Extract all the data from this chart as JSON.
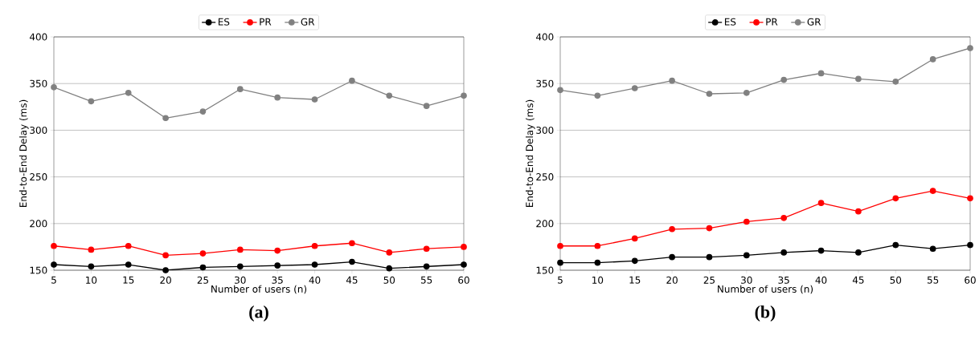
{
  "chart_data": [
    {
      "type": "line",
      "title": "(a)",
      "xlabel": "Number of users (n)",
      "ylabel": "End-to-End Delay (ms)",
      "x": [
        5,
        10,
        15,
        20,
        25,
        30,
        35,
        40,
        45,
        50,
        55,
        60
      ],
      "xlim": [
        5,
        60
      ],
      "xticks": [
        5,
        10,
        15,
        20,
        25,
        30,
        35,
        40,
        45,
        50,
        55,
        60
      ],
      "ylim": [
        150,
        400
      ],
      "yticks": [
        150,
        200,
        250,
        300,
        350,
        400
      ],
      "grid": "y",
      "legend": "top",
      "marker": "circle",
      "line_style": "solid",
      "series": [
        {
          "name": "ES",
          "color": "#000000",
          "values": [
            156,
            154,
            156,
            150,
            153,
            154,
            155,
            156,
            159,
            152,
            154,
            156
          ]
        },
        {
          "name": "PR",
          "color": "#ff0000",
          "values": [
            176,
            172,
            176,
            166,
            168,
            172,
            171,
            176,
            179,
            169,
            173,
            175
          ]
        },
        {
          "name": "GR",
          "color": "#808080",
          "values": [
            346,
            331,
            340,
            313,
            320,
            344,
            335,
            333,
            353,
            337,
            326,
            337
          ]
        }
      ]
    },
    {
      "type": "line",
      "title": "(b)",
      "xlabel": "Number of users (n)",
      "ylabel": "End-to-End Delay (ms)",
      "x": [
        5,
        10,
        15,
        20,
        25,
        30,
        35,
        40,
        45,
        50,
        55,
        60
      ],
      "xlim": [
        5,
        60
      ],
      "xticks": [
        5,
        10,
        15,
        20,
        25,
        30,
        35,
        40,
        45,
        50,
        55,
        60
      ],
      "ylim": [
        150,
        400
      ],
      "yticks": [
        150,
        200,
        250,
        300,
        350,
        400
      ],
      "grid": "y",
      "legend": "top",
      "marker": "circle",
      "line_style": "solid",
      "series": [
        {
          "name": "ES",
          "color": "#000000",
          "values": [
            158,
            158,
            160,
            164,
            164,
            166,
            169,
            171,
            169,
            177,
            173,
            177
          ]
        },
        {
          "name": "PR",
          "color": "#ff0000",
          "values": [
            176,
            176,
            184,
            194,
            195,
            202,
            206,
            222,
            213,
            227,
            235,
            227
          ]
        },
        {
          "name": "GR",
          "color": "#808080",
          "values": [
            343,
            337,
            345,
            353,
            339,
            340,
            354,
            361,
            355,
            352,
            376,
            388
          ]
        }
      ]
    }
  ]
}
